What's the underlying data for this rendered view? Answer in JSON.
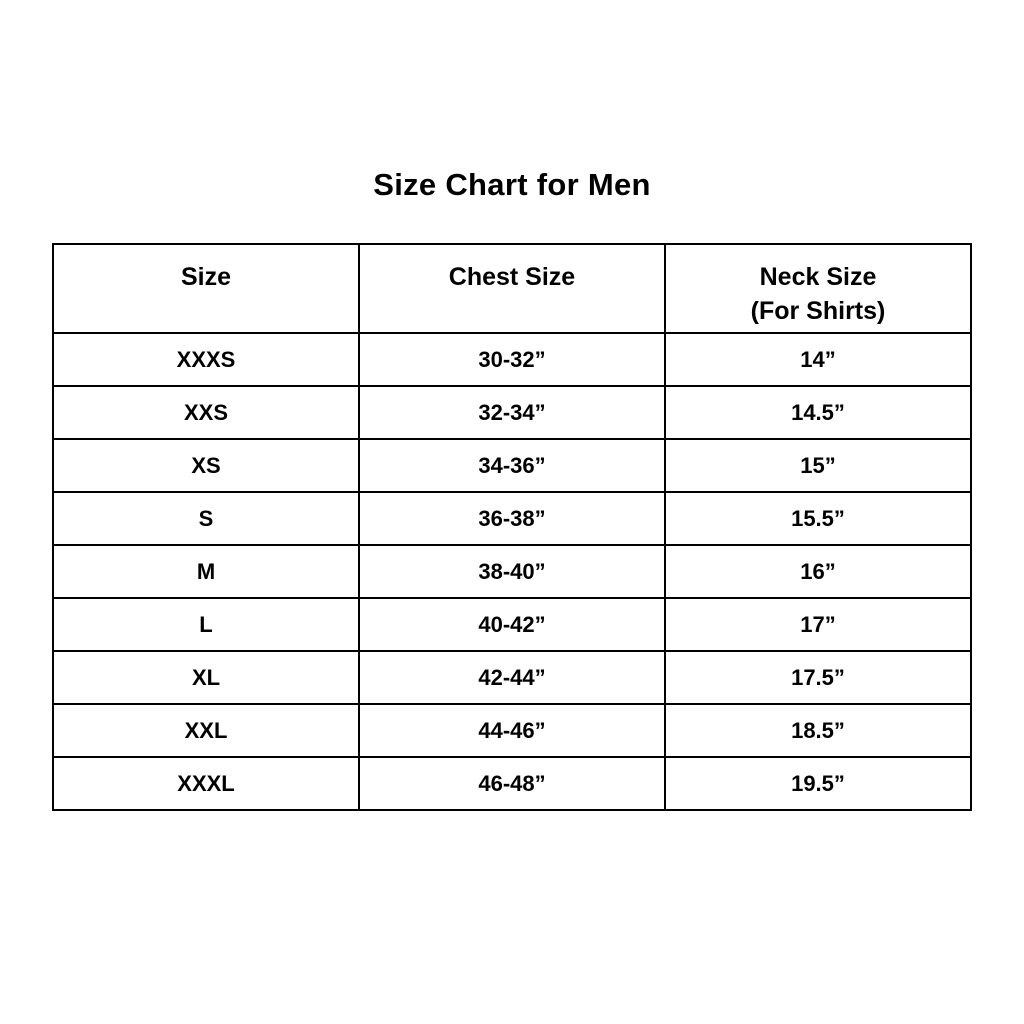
{
  "page": {
    "title": "Size Chart for Men"
  },
  "table": {
    "headers": [
      {
        "line1": "Size"
      },
      {
        "line1": "Chest Size"
      },
      {
        "line1": "Neck Size",
        "line2": "(For Shirts)"
      }
    ]
  },
  "chart_data": {
    "type": "table",
    "title": "Size Chart for Men",
    "columns": [
      "Size",
      "Chest Size",
      "Neck Size (For Shirts)"
    ],
    "rows": [
      [
        "XXXS",
        "30-32”",
        "14”"
      ],
      [
        "XXS",
        "32-34”",
        "14.5”"
      ],
      [
        "XS",
        "34-36”",
        "15”"
      ],
      [
        "S",
        "36-38”",
        "15.5”"
      ],
      [
        "M",
        "38-40”",
        "16”"
      ],
      [
        "L",
        "40-42”",
        "17”"
      ],
      [
        "XL",
        "42-44”",
        "17.5”"
      ],
      [
        "XXL",
        "44-46”",
        "18.5”"
      ],
      [
        "XXXL",
        "46-48”",
        "19.5”"
      ]
    ],
    "layout": {
      "grid": true,
      "border_color": "#000000",
      "background_color": "#ffffff",
      "text_color": "#000000"
    }
  }
}
